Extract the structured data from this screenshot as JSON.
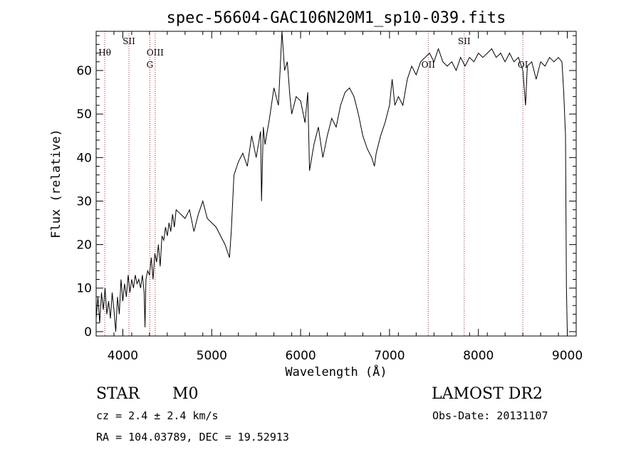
{
  "chart_data": {
    "type": "line",
    "title": "spec-56604-GAC106N20M1_sp10-039.fits",
    "xlabel": "Wavelength (Å)",
    "ylabel": "Flux (relative)",
    "xlim": [
      3700,
      9100
    ],
    "ylim": [
      -1,
      69
    ],
    "xticks": [
      4000,
      5000,
      6000,
      7000,
      8000,
      9000
    ],
    "yticks": [
      0,
      10,
      20,
      30,
      40,
      50,
      60
    ],
    "series": [
      {
        "points": [
          [
            3700,
            3
          ],
          [
            3720,
            8
          ],
          [
            3740,
            2
          ],
          [
            3760,
            9
          ],
          [
            3780,
            5
          ],
          [
            3800,
            10
          ],
          [
            3820,
            4
          ],
          [
            3840,
            7
          ],
          [
            3860,
            3
          ],
          [
            3880,
            9
          ],
          [
            3900,
            5
          ],
          [
            3920,
            0
          ],
          [
            3940,
            8
          ],
          [
            3960,
            4
          ],
          [
            3980,
            12
          ],
          [
            4000,
            7
          ],
          [
            4020,
            11
          ],
          [
            4040,
            8
          ],
          [
            4060,
            13
          ],
          [
            4080,
            9
          ],
          [
            4100,
            12
          ],
          [
            4120,
            10
          ],
          [
            4140,
            13
          ],
          [
            4160,
            11
          ],
          [
            4180,
            12
          ],
          [
            4200,
            10
          ],
          [
            4220,
            13
          ],
          [
            4240,
            9
          ],
          [
            4250,
            1
          ],
          [
            4260,
            12
          ],
          [
            4280,
            14
          ],
          [
            4300,
            13
          ],
          [
            4320,
            17
          ],
          [
            4340,
            12
          ],
          [
            4360,
            18
          ],
          [
            4380,
            16
          ],
          [
            4400,
            20
          ],
          [
            4420,
            15
          ],
          [
            4440,
            22
          ],
          [
            4460,
            21
          ],
          [
            4480,
            24
          ],
          [
            4500,
            22
          ],
          [
            4520,
            25
          ],
          [
            4540,
            23
          ],
          [
            4560,
            27
          ],
          [
            4580,
            24
          ],
          [
            4600,
            28
          ],
          [
            4650,
            27
          ],
          [
            4700,
            26
          ],
          [
            4750,
            28
          ],
          [
            4800,
            23
          ],
          [
            4850,
            27
          ],
          [
            4900,
            30
          ],
          [
            4950,
            26
          ],
          [
            5000,
            25
          ],
          [
            5050,
            24
          ],
          [
            5100,
            22
          ],
          [
            5150,
            20
          ],
          [
            5200,
            17
          ],
          [
            5220,
            23
          ],
          [
            5250,
            36
          ],
          [
            5300,
            39
          ],
          [
            5350,
            41
          ],
          [
            5400,
            38
          ],
          [
            5450,
            45
          ],
          [
            5500,
            40
          ],
          [
            5550,
            46
          ],
          [
            5560,
            30
          ],
          [
            5580,
            47
          ],
          [
            5600,
            43
          ],
          [
            5650,
            49
          ],
          [
            5700,
            56
          ],
          [
            5750,
            52
          ],
          [
            5790,
            69
          ],
          [
            5820,
            60
          ],
          [
            5850,
            62
          ],
          [
            5880,
            54
          ],
          [
            5900,
            50
          ],
          [
            5950,
            54
          ],
          [
            6000,
            53
          ],
          [
            6050,
            48
          ],
          [
            6080,
            55
          ],
          [
            6100,
            37
          ],
          [
            6150,
            43
          ],
          [
            6200,
            47
          ],
          [
            6250,
            40
          ],
          [
            6300,
            45
          ],
          [
            6350,
            49
          ],
          [
            6400,
            47
          ],
          [
            6450,
            52
          ],
          [
            6500,
            55
          ],
          [
            6550,
            56
          ],
          [
            6600,
            54
          ],
          [
            6650,
            50
          ],
          [
            6700,
            45
          ],
          [
            6750,
            42
          ],
          [
            6800,
            40
          ],
          [
            6830,
            38
          ],
          [
            6850,
            41
          ],
          [
            6900,
            45
          ],
          [
            6950,
            48
          ],
          [
            7000,
            52
          ],
          [
            7030,
            58
          ],
          [
            7060,
            52
          ],
          [
            7100,
            54
          ],
          [
            7150,
            52
          ],
          [
            7200,
            58
          ],
          [
            7250,
            61
          ],
          [
            7300,
            59
          ],
          [
            7350,
            62
          ],
          [
            7400,
            63
          ],
          [
            7450,
            64
          ],
          [
            7500,
            62
          ],
          [
            7550,
            65
          ],
          [
            7600,
            62
          ],
          [
            7650,
            61
          ],
          [
            7700,
            62
          ],
          [
            7750,
            60
          ],
          [
            7800,
            63
          ],
          [
            7850,
            61
          ],
          [
            7900,
            63
          ],
          [
            7950,
            62
          ],
          [
            8000,
            64
          ],
          [
            8050,
            63
          ],
          [
            8100,
            64
          ],
          [
            8150,
            65
          ],
          [
            8200,
            63
          ],
          [
            8250,
            64
          ],
          [
            8300,
            62
          ],
          [
            8350,
            64
          ],
          [
            8400,
            62
          ],
          [
            8450,
            63
          ],
          [
            8500,
            60
          ],
          [
            8530,
            52
          ],
          [
            8550,
            61
          ],
          [
            8600,
            62
          ],
          [
            8650,
            58
          ],
          [
            8700,
            62
          ],
          [
            8750,
            61
          ],
          [
            8800,
            63
          ],
          [
            8850,
            62
          ],
          [
            8900,
            63
          ],
          [
            8940,
            62
          ],
          [
            8960,
            55
          ],
          [
            8980,
            45
          ],
          [
            8990,
            10
          ],
          [
            9000,
            0
          ]
        ]
      }
    ],
    "lines": [
      {
        "wave": 3797,
        "labels": [
          "Hθ"
        ]
      },
      {
        "wave": 4069,
        "labels": [
          "SII"
        ]
      },
      {
        "wave": 4304,
        "labels": [
          "G"
        ]
      },
      {
        "wave": 4364,
        "labels": [
          "OIII"
        ]
      },
      {
        "wave": 7436,
        "labels": [
          "OII"
        ]
      },
      {
        "wave": 7840,
        "labels": [
          "SII"
        ]
      },
      {
        "wave": 8500,
        "labels": [
          "OI"
        ]
      }
    ],
    "grid": false,
    "legend": "none"
  },
  "info": {
    "class": "STAR",
    "subclass": "M0",
    "survey": "LAMOST DR2",
    "cz": "cz = 2.4 ± 2.4 km/s",
    "obs_date": "Obs-Date: 20131107",
    "coords": "RA = 104.03789, DEC =  19.52913"
  },
  "colors": {
    "spectrum": "#000000",
    "line_markers": "#b22222",
    "background": "#ffffff"
  }
}
